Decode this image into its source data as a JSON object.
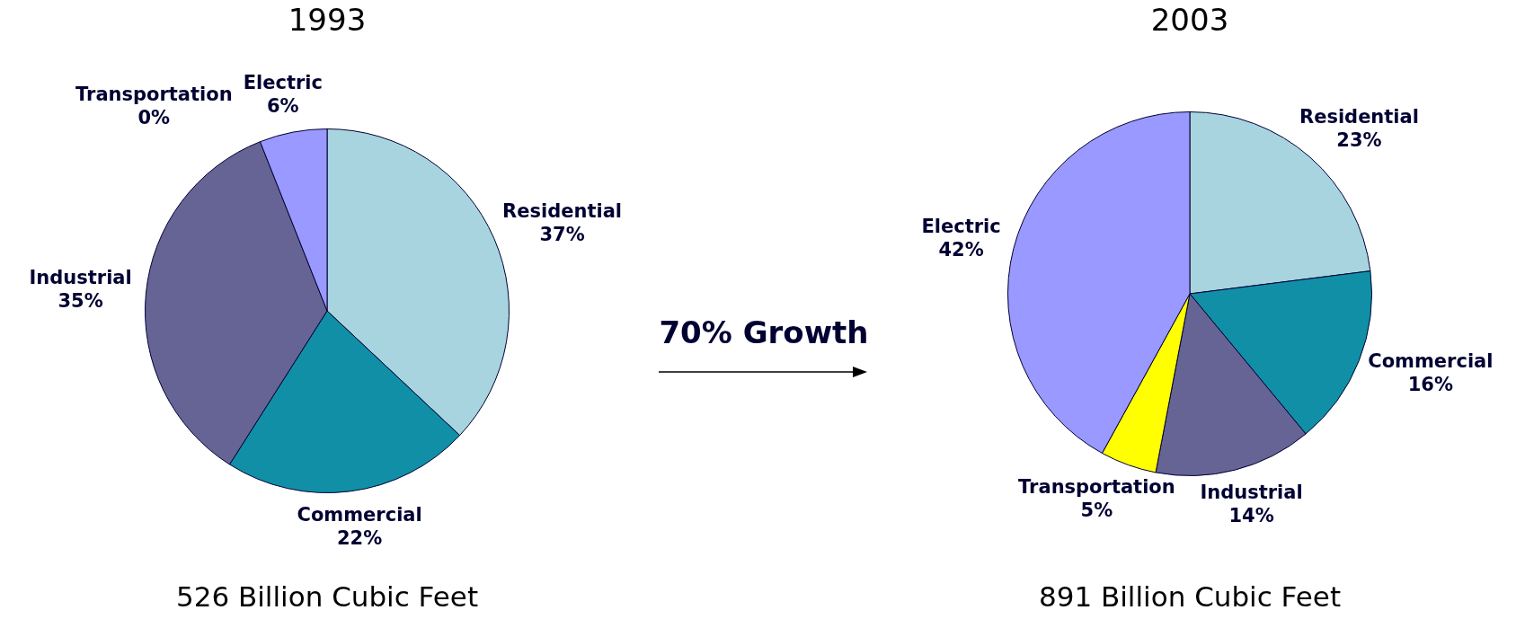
{
  "chart_data": [
    {
      "type": "pie",
      "title": "1993",
      "categories": [
        "Residential",
        "Commercial",
        "Industrial",
        "Transportation",
        "Electric"
      ],
      "values": [
        37,
        22,
        35,
        0,
        6
      ],
      "value_labels": [
        "37%",
        "22%",
        "35%",
        "0%",
        "6%"
      ],
      "colors": [
        "#a8d4e0",
        "#118fa6",
        "#666495",
        "#ffff00",
        "#9999ff"
      ],
      "legend": false,
      "annotations": [
        "526 Billion Cubic Feet",
        "70% Growth"
      ]
    },
    {
      "type": "pie",
      "title": "2003",
      "categories": [
        "Residential",
        "Commercial",
        "Industrial",
        "Transportation",
        "Electric"
      ],
      "values": [
        23,
        16,
        14,
        5,
        42
      ],
      "value_labels": [
        "23%",
        "16%",
        "14%",
        "5%",
        "42%"
      ],
      "colors": [
        "#a8d4e0",
        "#118fa6",
        "#666495",
        "#ffff00",
        "#9999ff"
      ],
      "legend": false,
      "annotations": [
        "891 Billion Cubic Feet"
      ]
    }
  ]
}
